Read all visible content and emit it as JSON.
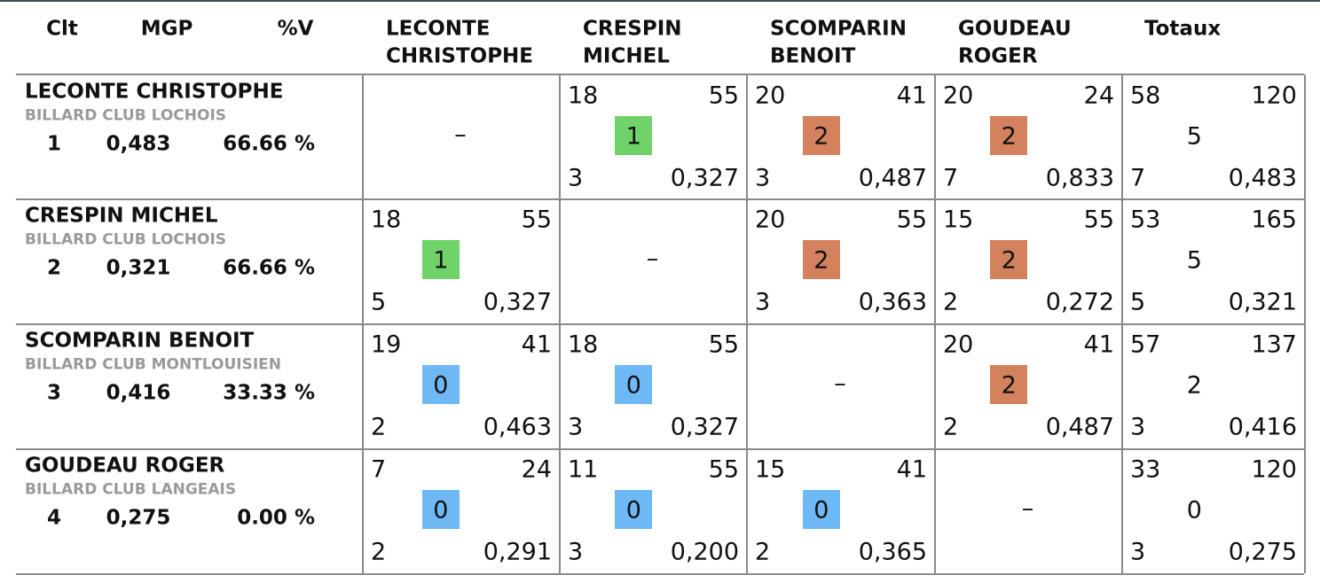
{
  "header": {
    "rank": "Clt",
    "mgp": "MGP",
    "pct": "%V",
    "players": [
      [
        "LECONTE",
        "CHRISTOPHE"
      ],
      [
        "CRESPIN",
        "MICHEL"
      ],
      [
        "SCOMPARIN",
        "BENOIT"
      ],
      [
        "GOUDEAU",
        "ROGER"
      ]
    ],
    "totals": "Totaux"
  },
  "result_colors": {
    "0": "#6db8f5",
    "1": "#6fd36a",
    "2": "#d4825e"
  },
  "rows": [
    {
      "name": "LECONTE CHRISTOPHE",
      "club": "BILLARD CLUB LOCHOIS",
      "rank": "1",
      "mgp": "0,483",
      "pct": "66.66 %",
      "cells": [
        {
          "dash": "–"
        },
        {
          "points": "18",
          "distance": "55",
          "result": "1",
          "innings": "3",
          "average": "0,327"
        },
        {
          "points": "20",
          "distance": "41",
          "result": "2",
          "innings": "3",
          "average": "0,487"
        },
        {
          "points": "20",
          "distance": "24",
          "result": "2",
          "innings": "7",
          "average": "0,833"
        }
      ],
      "totals": {
        "points": "58",
        "distance": "120",
        "result": "5",
        "innings": "7",
        "average": "0,483"
      }
    },
    {
      "name": "CRESPIN MICHEL",
      "club": "BILLARD CLUB LOCHOIS",
      "rank": "2",
      "mgp": "0,321",
      "pct": "66.66 %",
      "cells": [
        {
          "points": "18",
          "distance": "55",
          "result": "1",
          "innings": "5",
          "average": "0,327"
        },
        {
          "dash": "–"
        },
        {
          "points": "20",
          "distance": "55",
          "result": "2",
          "innings": "3",
          "average": "0,363"
        },
        {
          "points": "15",
          "distance": "55",
          "result": "2",
          "innings": "2",
          "average": "0,272"
        }
      ],
      "totals": {
        "points": "53",
        "distance": "165",
        "result": "5",
        "innings": "5",
        "average": "0,321"
      }
    },
    {
      "name": "SCOMPARIN BENOIT",
      "club": "BILLARD CLUB MONTLOUISIEN",
      "rank": "3",
      "mgp": "0,416",
      "pct": "33.33 %",
      "cells": [
        {
          "points": "19",
          "distance": "41",
          "result": "0",
          "innings": "2",
          "average": "0,463"
        },
        {
          "points": "18",
          "distance": "55",
          "result": "0",
          "innings": "3",
          "average": "0,327"
        },
        {
          "dash": "–"
        },
        {
          "points": "20",
          "distance": "41",
          "result": "2",
          "innings": "2",
          "average": "0,487"
        }
      ],
      "totals": {
        "points": "57",
        "distance": "137",
        "result": "2",
        "innings": "3",
        "average": "0,416"
      }
    },
    {
      "name": "GOUDEAU ROGER",
      "club": "BILLARD CLUB LANGEAIS",
      "rank": "4",
      "mgp": "0,275",
      "pct": "0.00 %",
      "cells": [
        {
          "points": "7",
          "distance": "24",
          "result": "0",
          "innings": "2",
          "average": "0,291"
        },
        {
          "points": "11",
          "distance": "55",
          "result": "0",
          "innings": "3",
          "average": "0,200"
        },
        {
          "points": "15",
          "distance": "41",
          "result": "0",
          "innings": "2",
          "average": "0,365"
        },
        {
          "dash": "–"
        }
      ],
      "totals": {
        "points": "33",
        "distance": "120",
        "result": "0",
        "innings": "3",
        "average": "0,275"
      }
    }
  ]
}
